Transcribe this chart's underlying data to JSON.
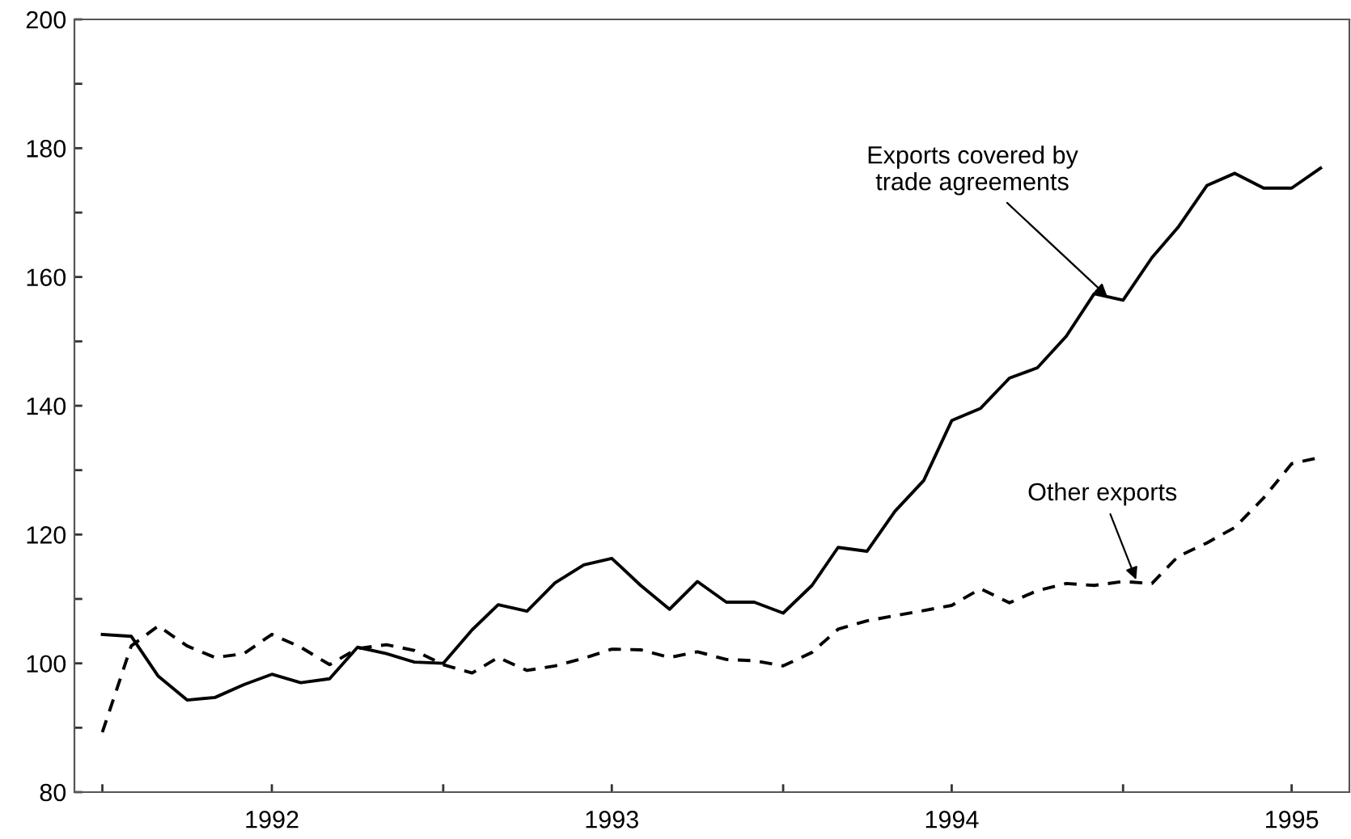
{
  "chart_data": {
    "type": "line",
    "x": [
      "1992-01",
      "1992-02",
      "1992-03",
      "1992-04",
      "1992-05",
      "1992-06",
      "1992-07",
      "1992-08",
      "1992-09",
      "1992-10",
      "1992-11",
      "1992-12",
      "1993-01",
      "1993-02",
      "1993-03",
      "1993-04",
      "1993-05",
      "1993-06",
      "1993-07",
      "1993-08",
      "1993-09",
      "1993-10",
      "1993-11",
      "1993-12",
      "1994-01",
      "1994-02",
      "1994-03",
      "1994-04",
      "1994-05",
      "1994-06",
      "1994-07",
      "1994-08",
      "1994-09",
      "1994-10",
      "1994-11",
      "1994-12",
      "1995-01",
      "1995-02",
      "1995-03",
      "1995-04",
      "1995-05",
      "1995-06",
      "1995-07",
      "1995-08"
    ],
    "series": [
      {
        "color": "#000000",
        "line_style": "solid",
        "values": [
          104.5,
          104.2,
          98,
          94.3,
          94.7,
          96.7,
          98.3,
          97,
          97.6,
          102.5,
          101.5,
          100.2,
          100,
          105.2,
          109.1,
          108.1,
          112.5,
          115.3,
          116.3,
          112.1,
          108.4,
          112.7,
          109.5,
          109.5,
          107.8,
          112.1,
          118,
          117.4,
          123.6,
          128.4,
          137.7,
          139.6,
          144.3,
          145.9,
          150.8,
          157.4,
          156.4,
          163,
          167.7,
          174.2,
          176.1,
          173.8,
          173.8,
          176.9
        ]
      },
      {
        "color": "#000000",
        "line_style": "dashed",
        "values": [
          89.3,
          102.7,
          105.8,
          102.7,
          100.9,
          101.5,
          104.5,
          102.5,
          99.8,
          102.3,
          102.9,
          102,
          99.8,
          98.5,
          100.9,
          98.9,
          99.6,
          100.8,
          102.2,
          102.1,
          100.9,
          101.8,
          100.6,
          100.4,
          99.6,
          101.7,
          105.3,
          106.6,
          107.4,
          108.2,
          109,
          111.6,
          109.4,
          111.3,
          112.4,
          112.1,
          112.7,
          112.4,
          116.6,
          118.7,
          121.1,
          125.7,
          131,
          132
        ]
      }
    ],
    "xlim": [
      "1991-12-02",
      "1995-09-01"
    ],
    "xticks": [
      {
        "value": "1992-01",
        "label": null
      },
      {
        "value": "1992-07",
        "label": "1992"
      },
      {
        "value": "1993-01",
        "label": null
      },
      {
        "value": "1993-07",
        "label": "1993"
      },
      {
        "value": "1994-01",
        "label": null
      },
      {
        "value": "1994-07",
        "label": "1994"
      },
      {
        "value": "1995-01",
        "label": null
      },
      {
        "value": "1995-07",
        "label": "1995"
      }
    ],
    "ylim": [
      80,
      200
    ],
    "yticks": [
      80,
      {
        "value": 90,
        "label": null
      },
      100,
      {
        "value": 110,
        "label": null
      },
      120,
      {
        "value": 130,
        "label": null
      },
      140,
      {
        "value": 150,
        "label": null
      },
      160,
      {
        "value": 170,
        "label": null
      },
      180,
      {
        "value": 190,
        "label": null
      },
      200
    ],
    "annotations": [
      {
        "text": "Exports covered by\ntrade agreements",
        "x": "1994-12-15",
        "y": 157
      },
      {
        "text": "Other exports",
        "x": "1995-01-15",
        "y": 113
      }
    ]
  }
}
